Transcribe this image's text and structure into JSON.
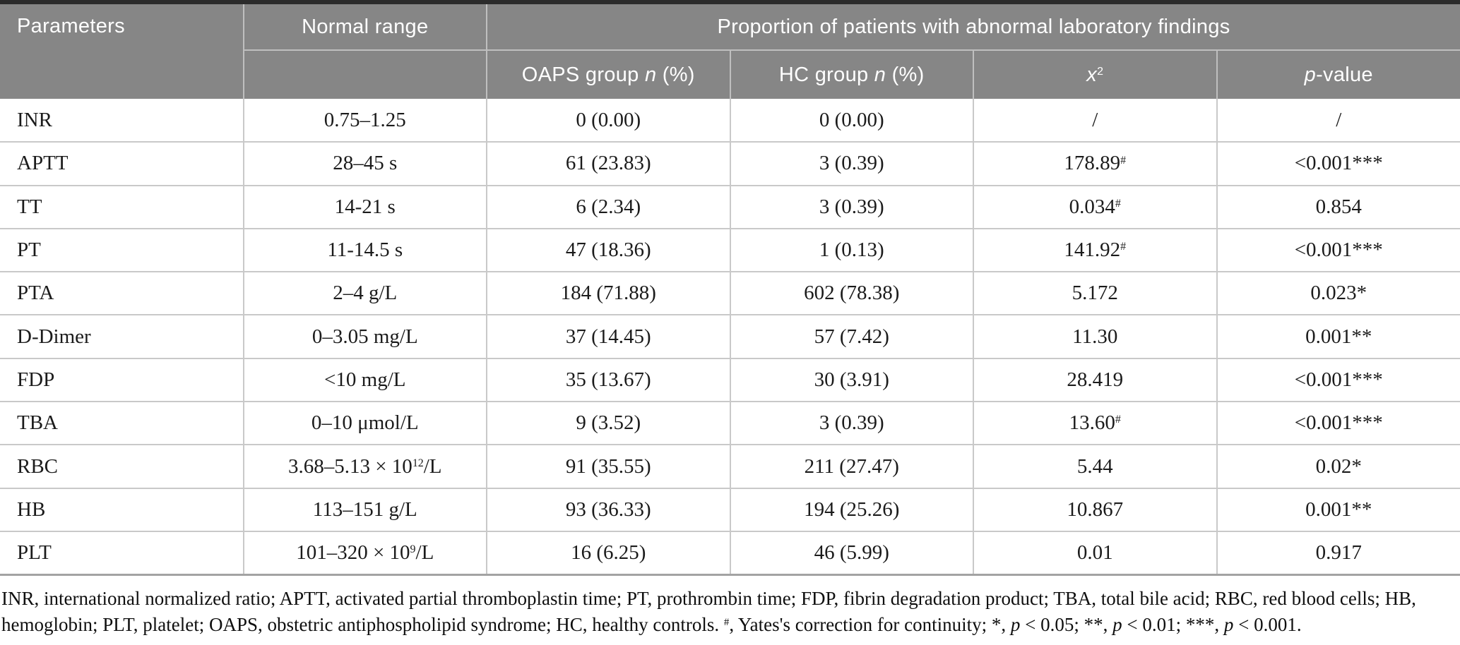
{
  "colors": {
    "header_bg": "#868686",
    "header_text": "#ffffff",
    "header_grid_line": "#bfbfbf",
    "grid_line": "#c9c9c9",
    "top_border": "#2b2b2b",
    "bottom_border": "#a3a3a3",
    "body_text": "#1b1b1b",
    "footnote_text": "#0f0f0f"
  },
  "table": {
    "header": {
      "parameters": "Parameters",
      "normal_range": "Normal range",
      "proportion": "Proportion of patients with abnormal laboratory findings",
      "oaps": [
        {
          "t": "OAPS group "
        },
        {
          "t": "n",
          "i": true
        },
        {
          "t": " (%)"
        }
      ],
      "hc": [
        {
          "t": "HC group "
        },
        {
          "t": "n",
          "i": true
        },
        {
          "t": " (%)"
        }
      ],
      "chi_square": [
        {
          "t": "x",
          "i": true
        },
        {
          "t": "2",
          "sup": true
        }
      ],
      "p_value": [
        {
          "t": "p",
          "i": true
        },
        {
          "t": "-value"
        }
      ]
    },
    "rows": [
      {
        "param": "INR",
        "range": [
          {
            "t": "0.75–1.25"
          }
        ],
        "oaps": "0 (0.00)",
        "hc": "0 (0.00)",
        "chi": [
          {
            "t": "/"
          }
        ],
        "p": "/"
      },
      {
        "param": "APTT",
        "range": [
          {
            "t": "28–45 s"
          }
        ],
        "oaps": "61 (23.83)",
        "hc": "3 (0.39)",
        "chi": [
          {
            "t": "178.89"
          },
          {
            "t": "#",
            "sup": true
          }
        ],
        "p": "<0.001***"
      },
      {
        "param": "TT",
        "range": [
          {
            "t": "14-21 s"
          }
        ],
        "oaps": "6 (2.34)",
        "hc": "3 (0.39)",
        "chi": [
          {
            "t": "0.034"
          },
          {
            "t": "#",
            "sup": true
          }
        ],
        "p": "0.854"
      },
      {
        "param": "PT",
        "range": [
          {
            "t": "11-14.5 s"
          }
        ],
        "oaps": "47 (18.36)",
        "hc": "1 (0.13)",
        "chi": [
          {
            "t": "141.92"
          },
          {
            "t": "#",
            "sup": true
          }
        ],
        "p": "<0.001***"
      },
      {
        "param": "PTA",
        "range": [
          {
            "t": "2–4 g/L"
          }
        ],
        "oaps": "184 (71.88)",
        "hc": "602 (78.38)",
        "chi": [
          {
            "t": "5.172"
          }
        ],
        "p": "0.023*"
      },
      {
        "param": "D-Dimer",
        "range": [
          {
            "t": "0–3.05 mg/L"
          }
        ],
        "oaps": "37 (14.45)",
        "hc": "57 (7.42)",
        "chi": [
          {
            "t": "11.30"
          }
        ],
        "p": "0.001**"
      },
      {
        "param": "FDP",
        "range": [
          {
            "t": "<10 mg/L"
          }
        ],
        "oaps": "35 (13.67)",
        "hc": "30 (3.91)",
        "chi": [
          {
            "t": "28.419"
          }
        ],
        "p": "<0.001***"
      },
      {
        "param": "TBA",
        "range": [
          {
            "t": "0–10 μmol/L"
          }
        ],
        "oaps": "9 (3.52)",
        "hc": "3 (0.39)",
        "chi": [
          {
            "t": "13.60"
          },
          {
            "t": "#",
            "sup": true
          }
        ],
        "p": "<0.001***"
      },
      {
        "param": "RBC",
        "range": [
          {
            "t": "3.68–5.13 × 10"
          },
          {
            "t": "12",
            "sup": true
          },
          {
            "t": "/L"
          }
        ],
        "oaps": "91 (35.55)",
        "hc": "211 (27.47)",
        "chi": [
          {
            "t": "5.44"
          }
        ],
        "p": "0.02*"
      },
      {
        "param": "HB",
        "range": [
          {
            "t": "113–151 g/L"
          }
        ],
        "oaps": "93 (36.33)",
        "hc": "194 (25.26)",
        "chi": [
          {
            "t": "10.867"
          }
        ],
        "p": "0.001**"
      },
      {
        "param": "PLT",
        "range": [
          {
            "t": "101–320 × 10"
          },
          {
            "t": "9",
            "sup": true
          },
          {
            "t": "/L"
          }
        ],
        "oaps": "16 (6.25)",
        "hc": "46 (5.99)",
        "chi": [
          {
            "t": "0.01"
          }
        ],
        "p": "0.917"
      }
    ]
  },
  "footnote": {
    "line1": [
      {
        "t": "INR, international normalized ratio; APTT, activated partial thromboplastin time; PT, prothrombin time; FDP, fibrin degradation product; TBA, total bile acid; RBC, red blood cells; HB,"
      }
    ],
    "line2": [
      {
        "t": "hemoglobin; PLT, platelet; OAPS, obstetric antiphospholipid syndrome; HC, healthy controls. "
      },
      {
        "t": "#",
        "sup": true
      },
      {
        "t": ", Yates's correction for continuity; *, "
      },
      {
        "t": "p",
        "i": true
      },
      {
        "t": " < 0.05; **, "
      },
      {
        "t": "p",
        "i": true
      },
      {
        "t": " < 0.01; ***, "
      },
      {
        "t": "p",
        "i": true
      },
      {
        "t": " < 0.001."
      }
    ]
  }
}
